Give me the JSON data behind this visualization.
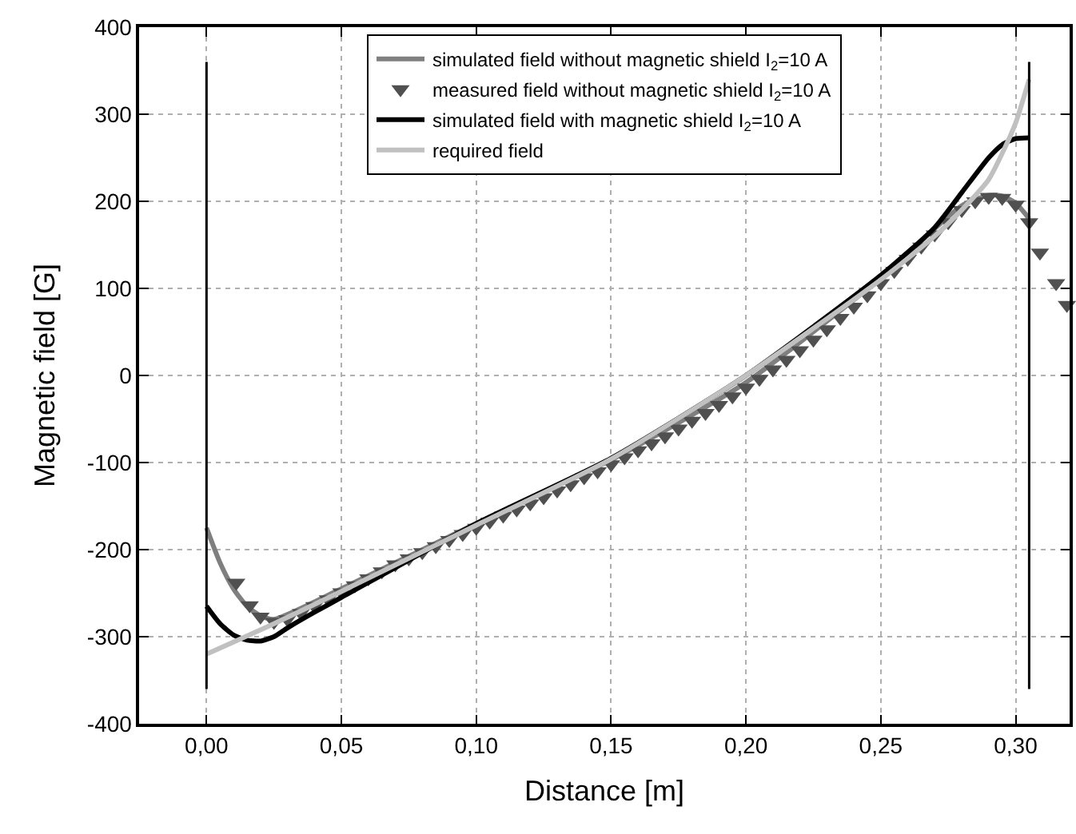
{
  "chart_data": {
    "type": "line",
    "xlabel": "Distance [m]",
    "ylabel": "Magnetic field [G]",
    "xlim": [
      -0.025,
      0.32
    ],
    "ylim": [
      -400,
      400
    ],
    "xticks": [
      {
        "value": 0,
        "label": "0,00"
      },
      {
        "value": 0.05,
        "label": "0,05"
      },
      {
        "value": 0.1,
        "label": "0,10"
      },
      {
        "value": 0.15,
        "label": "0,15"
      },
      {
        "value": 0.2,
        "label": "0,20"
      },
      {
        "value": 0.25,
        "label": "0,25"
      },
      {
        "value": 0.3,
        "label": "0,30"
      }
    ],
    "yticks": [
      -400,
      -300,
      -200,
      -100,
      0,
      100,
      200,
      300,
      400
    ],
    "grid": true,
    "legend": "top",
    "ref_lines": [
      {
        "axis": "x",
        "value": 0,
        "color": "#000000"
      },
      {
        "axis": "x",
        "value": 0.305,
        "color": "#000000"
      }
    ],
    "series": [
      {
        "name": "simulated field without magnetic shield I$_{2}$=10 A",
        "color": "#7f7f7f",
        "x": [
          0,
          0.005,
          0.01,
          0.015,
          0.02,
          0.025,
          0.05,
          0.1,
          0.15,
          0.2,
          0.25,
          0.28,
          0.29,
          0.295,
          0.3,
          0.305
        ],
        "values": [
          -175,
          -215,
          -245,
          -265,
          -276,
          -280,
          -245,
          -170,
          -97,
          -8,
          112,
          195,
          207,
          206,
          198,
          180
        ]
      },
      {
        "name": "measured field without magnetic shield I$_{2}$=10 A",
        "type": "scatter",
        "marker": "triangle",
        "color": "#505050",
        "x": [
          0.011,
          0.016,
          0.02,
          0.025,
          0.03,
          0.035,
          0.04,
          0.045,
          0.05,
          0.055,
          0.06,
          0.065,
          0.07,
          0.075,
          0.08,
          0.085,
          0.09,
          0.095,
          0.1,
          0.105,
          0.11,
          0.115,
          0.12,
          0.125,
          0.13,
          0.135,
          0.14,
          0.145,
          0.15,
          0.155,
          0.16,
          0.165,
          0.17,
          0.175,
          0.18,
          0.185,
          0.19,
          0.195,
          0.2,
          0.205,
          0.21,
          0.215,
          0.22,
          0.225,
          0.23,
          0.235,
          0.24,
          0.245,
          0.25,
          0.255,
          0.26,
          0.265,
          0.27,
          0.275,
          0.28,
          0.285,
          0.29,
          0.295,
          0.3,
          0.305,
          0.309,
          0.315,
          0.319
        ],
        "values": [
          -238,
          -264,
          -277,
          -283,
          -280,
          -273,
          -265,
          -257,
          -249,
          -241,
          -233,
          -225,
          -217,
          -210,
          -203,
          -196,
          -189,
          -182,
          -175,
          -168,
          -161,
          -154,
          -147,
          -140,
          -132,
          -125,
          -117,
          -110,
          -102,
          -94,
          -86,
          -78,
          -70,
          -61,
          -52,
          -43,
          -34,
          -24,
          -14,
          -4,
          7,
          18,
          29,
          41,
          53,
          66,
          79,
          92,
          106,
          120,
          134,
          148,
          162,
          176,
          190,
          200,
          205,
          204,
          196,
          176,
          141,
          106,
          81
        ]
      },
      {
        "name": "simulated field with magnetic shield I$_{2}$=10 A",
        "color": "#000000",
        "x": [
          0,
          0.005,
          0.01,
          0.015,
          0.02,
          0.025,
          0.03,
          0.04,
          0.05,
          0.1,
          0.15,
          0.2,
          0.25,
          0.27,
          0.28,
          0.29,
          0.295,
          0.3,
          0.305
        ],
        "values": [
          -265,
          -285,
          -298,
          -304,
          -305,
          -300,
          -290,
          -272,
          -255,
          -170,
          -95,
          0,
          115,
          170,
          210,
          250,
          265,
          272,
          273
        ]
      },
      {
        "name": "required field",
        "color": "#c0c0c0",
        "x": [
          0,
          0.025,
          0.05,
          0.1,
          0.15,
          0.2,
          0.25,
          0.27,
          0.28,
          0.29,
          0.295,
          0.3,
          0.305
        ],
        "values": [
          -320,
          -285,
          -248,
          -172,
          -96,
          0,
          110,
          160,
          190,
          225,
          255,
          290,
          340
        ]
      }
    ]
  }
}
